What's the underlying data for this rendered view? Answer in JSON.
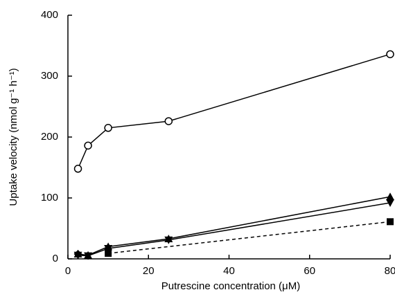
{
  "chart_data": {
    "type": "line",
    "x_label": "Putrescine concentration (μM)",
    "y_label": "Uptake velocity (nmol g⁻¹ h⁻¹)",
    "xlim": [
      0,
      80
    ],
    "xticks": [
      0,
      20,
      40,
      60,
      80
    ],
    "ylim": [
      0,
      400
    ],
    "yticks": [
      0,
      100,
      200,
      300,
      400
    ],
    "grid": false,
    "series": [
      {
        "color": "#000000",
        "marker": "open-circle",
        "dash": false,
        "x": [
          2.5,
          5,
          10,
          25,
          80
        ],
        "values": [
          148,
          186,
          215,
          226,
          336
        ]
      },
      {
        "color": "#000000",
        "marker": "triangle-up",
        "dash": false,
        "x": [
          2.5,
          5,
          10,
          25,
          80
        ],
        "values": [
          8,
          6,
          20,
          33,
          102
        ]
      },
      {
        "color": "#000000",
        "marker": "triangle-down",
        "dash": false,
        "x": [
          2.5,
          5,
          10,
          25,
          80
        ],
        "values": [
          6,
          5,
          17,
          31,
          92
        ]
      },
      {
        "color": "#000000",
        "marker": "diamond",
        "dash": false,
        "x": [
          2.5
        ],
        "values": [
          8
        ]
      },
      {
        "color": "#000000",
        "marker": "square",
        "dash": true,
        "x": [
          10,
          80
        ],
        "values": [
          9,
          61
        ]
      }
    ]
  }
}
